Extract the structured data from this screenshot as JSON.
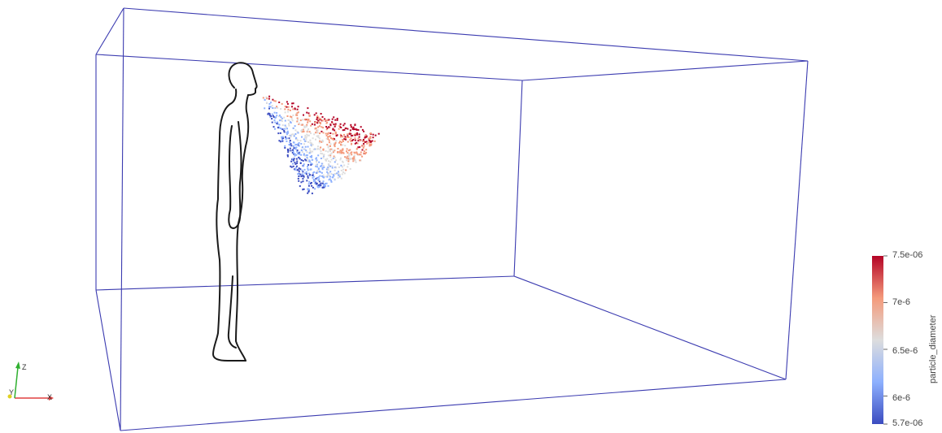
{
  "scene": {
    "box_edge_color": "#3b3bb0",
    "figure_outline_color": "#1a1a1a"
  },
  "particles": {
    "color_map": [
      "#3b4cc0",
      "#8db0fe",
      "#dddddd",
      "#f49a7b",
      "#b40426"
    ]
  },
  "colorbar": {
    "title": "particle_diameter",
    "top_label": "7.5e-06",
    "bottom_label": "5.7e-06",
    "ticks": [
      "7e-6",
      "6.5e-6",
      "6e-6"
    ],
    "tick_values": [
      7e-06,
      6.5e-06,
      6e-06
    ],
    "range": [
      5.7e-06,
      7.5e-06
    ],
    "top_color": "#b40426",
    "mid_color": "#dddddd",
    "bottom_color": "#3b4cc0"
  },
  "orientation_axes": {
    "x_label": "X",
    "y_label": "Y",
    "z_label": "Z",
    "x_color": "#e04040",
    "y_color": "#e0d020",
    "z_color": "#30b030"
  }
}
